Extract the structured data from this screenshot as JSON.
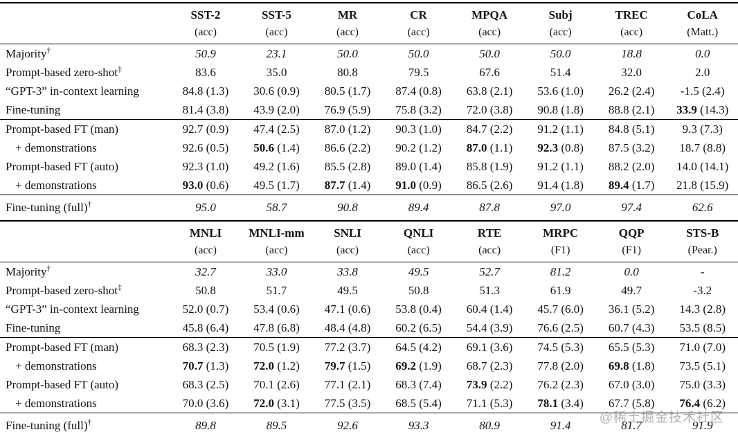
{
  "watermark": "@稀土掘金技术社区",
  "colors": {
    "text": "#141414",
    "rule": "#000000",
    "watermark": "#8f959b"
  },
  "tables": [
    {
      "columns": [
        {
          "name": "SST-2",
          "metric": "(acc)"
        },
        {
          "name": "SST-5",
          "metric": "(acc)"
        },
        {
          "name": "MR",
          "metric": "(acc)"
        },
        {
          "name": "CR",
          "metric": "(acc)"
        },
        {
          "name": "MPQA",
          "metric": "(acc)"
        },
        {
          "name": "Subj",
          "metric": "(acc)"
        },
        {
          "name": "TREC",
          "metric": "(acc)"
        },
        {
          "name": "CoLA",
          "metric": "(Matt.)"
        }
      ],
      "sections": [
        {
          "rows": [
            {
              "label": "Majority",
              "sup": "†",
              "italic": true,
              "cells": [
                {
                  "v": "50.9"
                },
                {
                  "v": "23.1"
                },
                {
                  "v": "50.0"
                },
                {
                  "v": "50.0"
                },
                {
                  "v": "50.0"
                },
                {
                  "v": "50.0"
                },
                {
                  "v": "18.8"
                },
                {
                  "v": "0.0"
                }
              ]
            },
            {
              "label": "Prompt-based zero-shot",
              "sup": "‡",
              "cells": [
                {
                  "v": "83.6"
                },
                {
                  "v": "35.0"
                },
                {
                  "v": "80.8"
                },
                {
                  "v": "79.5"
                },
                {
                  "v": "67.6"
                },
                {
                  "v": "51.4"
                },
                {
                  "v": "32.0"
                },
                {
                  "v": "2.0"
                }
              ]
            },
            {
              "label": "“GPT-3” in-context learning",
              "cells": [
                {
                  "v": "84.8",
                  "sd": "1.3"
                },
                {
                  "v": "30.6",
                  "sd": "0.9"
                },
                {
                  "v": "80.5",
                  "sd": "1.7"
                },
                {
                  "v": "87.4",
                  "sd": "0.8"
                },
                {
                  "v": "63.8",
                  "sd": "2.1"
                },
                {
                  "v": "53.6",
                  "sd": "1.0"
                },
                {
                  "v": "26.2",
                  "sd": "2.4"
                },
                {
                  "v": "-1.5",
                  "sd": "2.4"
                }
              ]
            },
            {
              "label": "Fine-tuning",
              "cells": [
                {
                  "v": "81.4",
                  "sd": "3.8"
                },
                {
                  "v": "43.9",
                  "sd": "2.0"
                },
                {
                  "v": "76.9",
                  "sd": "5.9"
                },
                {
                  "v": "75.8",
                  "sd": "3.2"
                },
                {
                  "v": "72.0",
                  "sd": "3.8"
                },
                {
                  "v": "90.8",
                  "sd": "1.8"
                },
                {
                  "v": "88.8",
                  "sd": "2.1"
                },
                {
                  "v": "33.9",
                  "sd": "14.3",
                  "b": true
                }
              ]
            }
          ]
        },
        {
          "rows": [
            {
              "label": "Prompt-based FT (man)",
              "cells": [
                {
                  "v": "92.7",
                  "sd": "0.9"
                },
                {
                  "v": "47.4",
                  "sd": "2.5"
                },
                {
                  "v": "87.0",
                  "sd": "1.2"
                },
                {
                  "v": "90.3",
                  "sd": "1.0"
                },
                {
                  "v": "84.7",
                  "sd": "2.2"
                },
                {
                  "v": "91.2",
                  "sd": "1.1"
                },
                {
                  "v": "84.8",
                  "sd": "5.1"
                },
                {
                  "v": "9.3",
                  "sd": "7.3"
                }
              ]
            },
            {
              "label": "+ demonstrations",
              "indent": true,
              "cells": [
                {
                  "v": "92.6",
                  "sd": "0.5"
                },
                {
                  "v": "50.6",
                  "sd": "1.4",
                  "b": true
                },
                {
                  "v": "86.6",
                  "sd": "2.2"
                },
                {
                  "v": "90.2",
                  "sd": "1.2"
                },
                {
                  "v": "87.0",
                  "sd": "1.1",
                  "b": true
                },
                {
                  "v": "92.3",
                  "sd": "0.8",
                  "b": true
                },
                {
                  "v": "87.5",
                  "sd": "3.2"
                },
                {
                  "v": "18.7",
                  "sd": "8.8"
                }
              ]
            },
            {
              "label": "Prompt-based FT (auto)",
              "cells": [
                {
                  "v": "92.3",
                  "sd": "1.0"
                },
                {
                  "v": "49.2",
                  "sd": "1.6"
                },
                {
                  "v": "85.5",
                  "sd": "2.8"
                },
                {
                  "v": "89.0",
                  "sd": "1.4"
                },
                {
                  "v": "85.8",
                  "sd": "1.9"
                },
                {
                  "v": "91.2",
                  "sd": "1.1"
                },
                {
                  "v": "88.2",
                  "sd": "2.0"
                },
                {
                  "v": "14.0",
                  "sd": "14.1"
                }
              ]
            },
            {
              "label": "+ demonstrations",
              "indent": true,
              "cells": [
                {
                  "v": "93.0",
                  "sd": "0.6",
                  "b": true
                },
                {
                  "v": "49.5",
                  "sd": "1.7"
                },
                {
                  "v": "87.7",
                  "sd": "1.4",
                  "b": true
                },
                {
                  "v": "91.0",
                  "sd": "0.9",
                  "b": true
                },
                {
                  "v": "86.5",
                  "sd": "2.6"
                },
                {
                  "v": "91.4",
                  "sd": "1.8"
                },
                {
                  "v": "89.4",
                  "sd": "1.7",
                  "b": true
                },
                {
                  "v": "21.8",
                  "sd": "15.9"
                }
              ]
            }
          ]
        },
        {
          "rows": [
            {
              "label": "Fine-tuning (full)",
              "sup": "†",
              "italic": true,
              "cells": [
                {
                  "v": "95.0"
                },
                {
                  "v": "58.7"
                },
                {
                  "v": "90.8"
                },
                {
                  "v": "89.4"
                },
                {
                  "v": "87.8"
                },
                {
                  "v": "97.0"
                },
                {
                  "v": "97.4"
                },
                {
                  "v": "62.6"
                }
              ]
            }
          ]
        }
      ]
    },
    {
      "columns": [
        {
          "name": "MNLI",
          "metric": "(acc)"
        },
        {
          "name": "MNLI-mm",
          "metric": "(acc)"
        },
        {
          "name": "SNLI",
          "metric": "(acc)"
        },
        {
          "name": "QNLI",
          "metric": "(acc)"
        },
        {
          "name": "RTE",
          "metric": "(acc)"
        },
        {
          "name": "MRPC",
          "metric": "(F1)"
        },
        {
          "name": "QQP",
          "metric": "(F1)"
        },
        {
          "name": "STS-B",
          "metric": "(Pear.)"
        }
      ],
      "sections": [
        {
          "rows": [
            {
              "label": "Majority",
              "sup": "†",
              "italic": true,
              "cells": [
                {
                  "v": "32.7"
                },
                {
                  "v": "33.0"
                },
                {
                  "v": "33.8"
                },
                {
                  "v": "49.5"
                },
                {
                  "v": "52.7"
                },
                {
                  "v": "81.2"
                },
                {
                  "v": "0.0"
                },
                {
                  "v": "-"
                }
              ]
            },
            {
              "label": "Prompt-based zero-shot",
              "sup": "‡",
              "cells": [
                {
                  "v": "50.8"
                },
                {
                  "v": "51.7"
                },
                {
                  "v": "49.5"
                },
                {
                  "v": "50.8"
                },
                {
                  "v": "51.3"
                },
                {
                  "v": "61.9"
                },
                {
                  "v": "49.7"
                },
                {
                  "v": "-3.2"
                }
              ]
            },
            {
              "label": "“GPT-3” in-context learning",
              "cells": [
                {
                  "v": "52.0",
                  "sd": "0.7"
                },
                {
                  "v": "53.4",
                  "sd": "0.6"
                },
                {
                  "v": "47.1",
                  "sd": "0.6"
                },
                {
                  "v": "53.8",
                  "sd": "0.4"
                },
                {
                  "v": "60.4",
                  "sd": "1.4"
                },
                {
                  "v": "45.7",
                  "sd": "6.0"
                },
                {
                  "v": "36.1",
                  "sd": "5.2"
                },
                {
                  "v": "14.3",
                  "sd": "2.8"
                }
              ]
            },
            {
              "label": "Fine-tuning",
              "cells": [
                {
                  "v": "45.8",
                  "sd": "6.4"
                },
                {
                  "v": "47.8",
                  "sd": "6.8"
                },
                {
                  "v": "48.4",
                  "sd": "4.8"
                },
                {
                  "v": "60.2",
                  "sd": "6.5"
                },
                {
                  "v": "54.4",
                  "sd": "3.9"
                },
                {
                  "v": "76.6",
                  "sd": "2.5"
                },
                {
                  "v": "60.7",
                  "sd": "4.3"
                },
                {
                  "v": "53.5",
                  "sd": "8.5"
                }
              ]
            }
          ]
        },
        {
          "rows": [
            {
              "label": "Prompt-based FT (man)",
              "cells": [
                {
                  "v": "68.3",
                  "sd": "2.3"
                },
                {
                  "v": "70.5",
                  "sd": "1.9"
                },
                {
                  "v": "77.2",
                  "sd": "3.7"
                },
                {
                  "v": "64.5",
                  "sd": "4.2"
                },
                {
                  "v": "69.1",
                  "sd": "3.6"
                },
                {
                  "v": "74.5",
                  "sd": "5.3"
                },
                {
                  "v": "65.5",
                  "sd": "5.3"
                },
                {
                  "v": "71.0",
                  "sd": "7.0"
                }
              ]
            },
            {
              "label": "+ demonstrations",
              "indent": true,
              "cells": [
                {
                  "v": "70.7",
                  "sd": "1.3",
                  "b": true
                },
                {
                  "v": "72.0",
                  "sd": "1.2",
                  "b": true
                },
                {
                  "v": "79.7",
                  "sd": "1.5",
                  "b": true
                },
                {
                  "v": "69.2",
                  "sd": "1.9",
                  "b": true
                },
                {
                  "v": "68.7",
                  "sd": "2.3"
                },
                {
                  "v": "77.8",
                  "sd": "2.0"
                },
                {
                  "v": "69.8",
                  "sd": "1.8",
                  "b": true
                },
                {
                  "v": "73.5",
                  "sd": "5.1"
                }
              ]
            },
            {
              "label": "Prompt-based FT (auto)",
              "cells": [
                {
                  "v": "68.3",
                  "sd": "2.5"
                },
                {
                  "v": "70.1",
                  "sd": "2.6"
                },
                {
                  "v": "77.1",
                  "sd": "2.1"
                },
                {
                  "v": "68.3",
                  "sd": "7.4"
                },
                {
                  "v": "73.9",
                  "sd": "2.2",
                  "b": true
                },
                {
                  "v": "76.2",
                  "sd": "2.3"
                },
                {
                  "v": "67.0",
                  "sd": "3.0"
                },
                {
                  "v": "75.0",
                  "sd": "3.3"
                }
              ]
            },
            {
              "label": "+ demonstrations",
              "indent": true,
              "cells": [
                {
                  "v": "70.0",
                  "sd": "3.6"
                },
                {
                  "v": "72.0",
                  "sd": "3.1",
                  "b": true
                },
                {
                  "v": "77.5",
                  "sd": "3.5"
                },
                {
                  "v": "68.5",
                  "sd": "5.4"
                },
                {
                  "v": "71.1",
                  "sd": "5.3"
                },
                {
                  "v": "78.1",
                  "sd": "3.4",
                  "b": true
                },
                {
                  "v": "67.7",
                  "sd": "5.8"
                },
                {
                  "v": "76.4",
                  "sd": "6.2",
                  "b": true
                }
              ]
            }
          ]
        },
        {
          "rows": [
            {
              "label": "Fine-tuning (full)",
              "sup": "†",
              "italic": true,
              "cells": [
                {
                  "v": "89.8"
                },
                {
                  "v": "89.5"
                },
                {
                  "v": "92.6"
                },
                {
                  "v": "93.3"
                },
                {
                  "v": "80.9"
                },
                {
                  "v": "91.4"
                },
                {
                  "v": "81.7"
                },
                {
                  "v": "91.9"
                }
              ]
            }
          ]
        }
      ]
    }
  ]
}
